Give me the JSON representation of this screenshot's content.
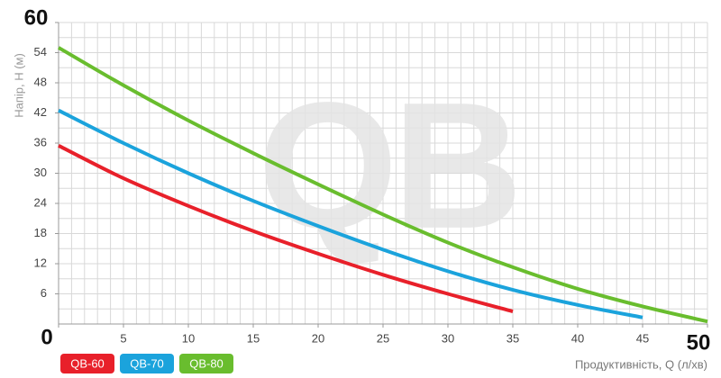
{
  "chart_data": {
    "type": "line",
    "watermark": "QB",
    "x_label": "Продуктивність, Q (л/хв)",
    "y_label": "Напір, H (м)",
    "x": [
      0,
      5,
      10,
      15,
      20,
      25,
      30,
      35,
      40,
      45,
      50
    ],
    "series": [
      {
        "name": "QB-60",
        "color": "#e8202a",
        "values": [
          35.5,
          29,
          23.5,
          18.5,
          14,
          9.8,
          6,
          2.5,
          null,
          null,
          null
        ]
      },
      {
        "name": "QB-70",
        "color": "#1ba3dc",
        "values": [
          42.5,
          36,
          30,
          24.5,
          19.5,
          14.8,
          10.5,
          6.8,
          3.8,
          1.3,
          null
        ]
      },
      {
        "name": "QB-80",
        "color": "#69bd2e",
        "values": [
          55,
          47.5,
          40.5,
          34,
          27.8,
          21.8,
          16.2,
          11.3,
          7,
          3.5,
          0.5
        ]
      }
    ],
    "xlim": [
      0,
      50
    ],
    "ylim": [
      0,
      60
    ],
    "xticks": [
      0,
      5,
      10,
      15,
      20,
      25,
      30,
      35,
      40,
      45,
      50
    ],
    "yticks": [
      6,
      12,
      18,
      24,
      30,
      36,
      42,
      48,
      54,
      60
    ],
    "grid": true,
    "grid_step": {
      "x": 1,
      "y": 3
    }
  }
}
